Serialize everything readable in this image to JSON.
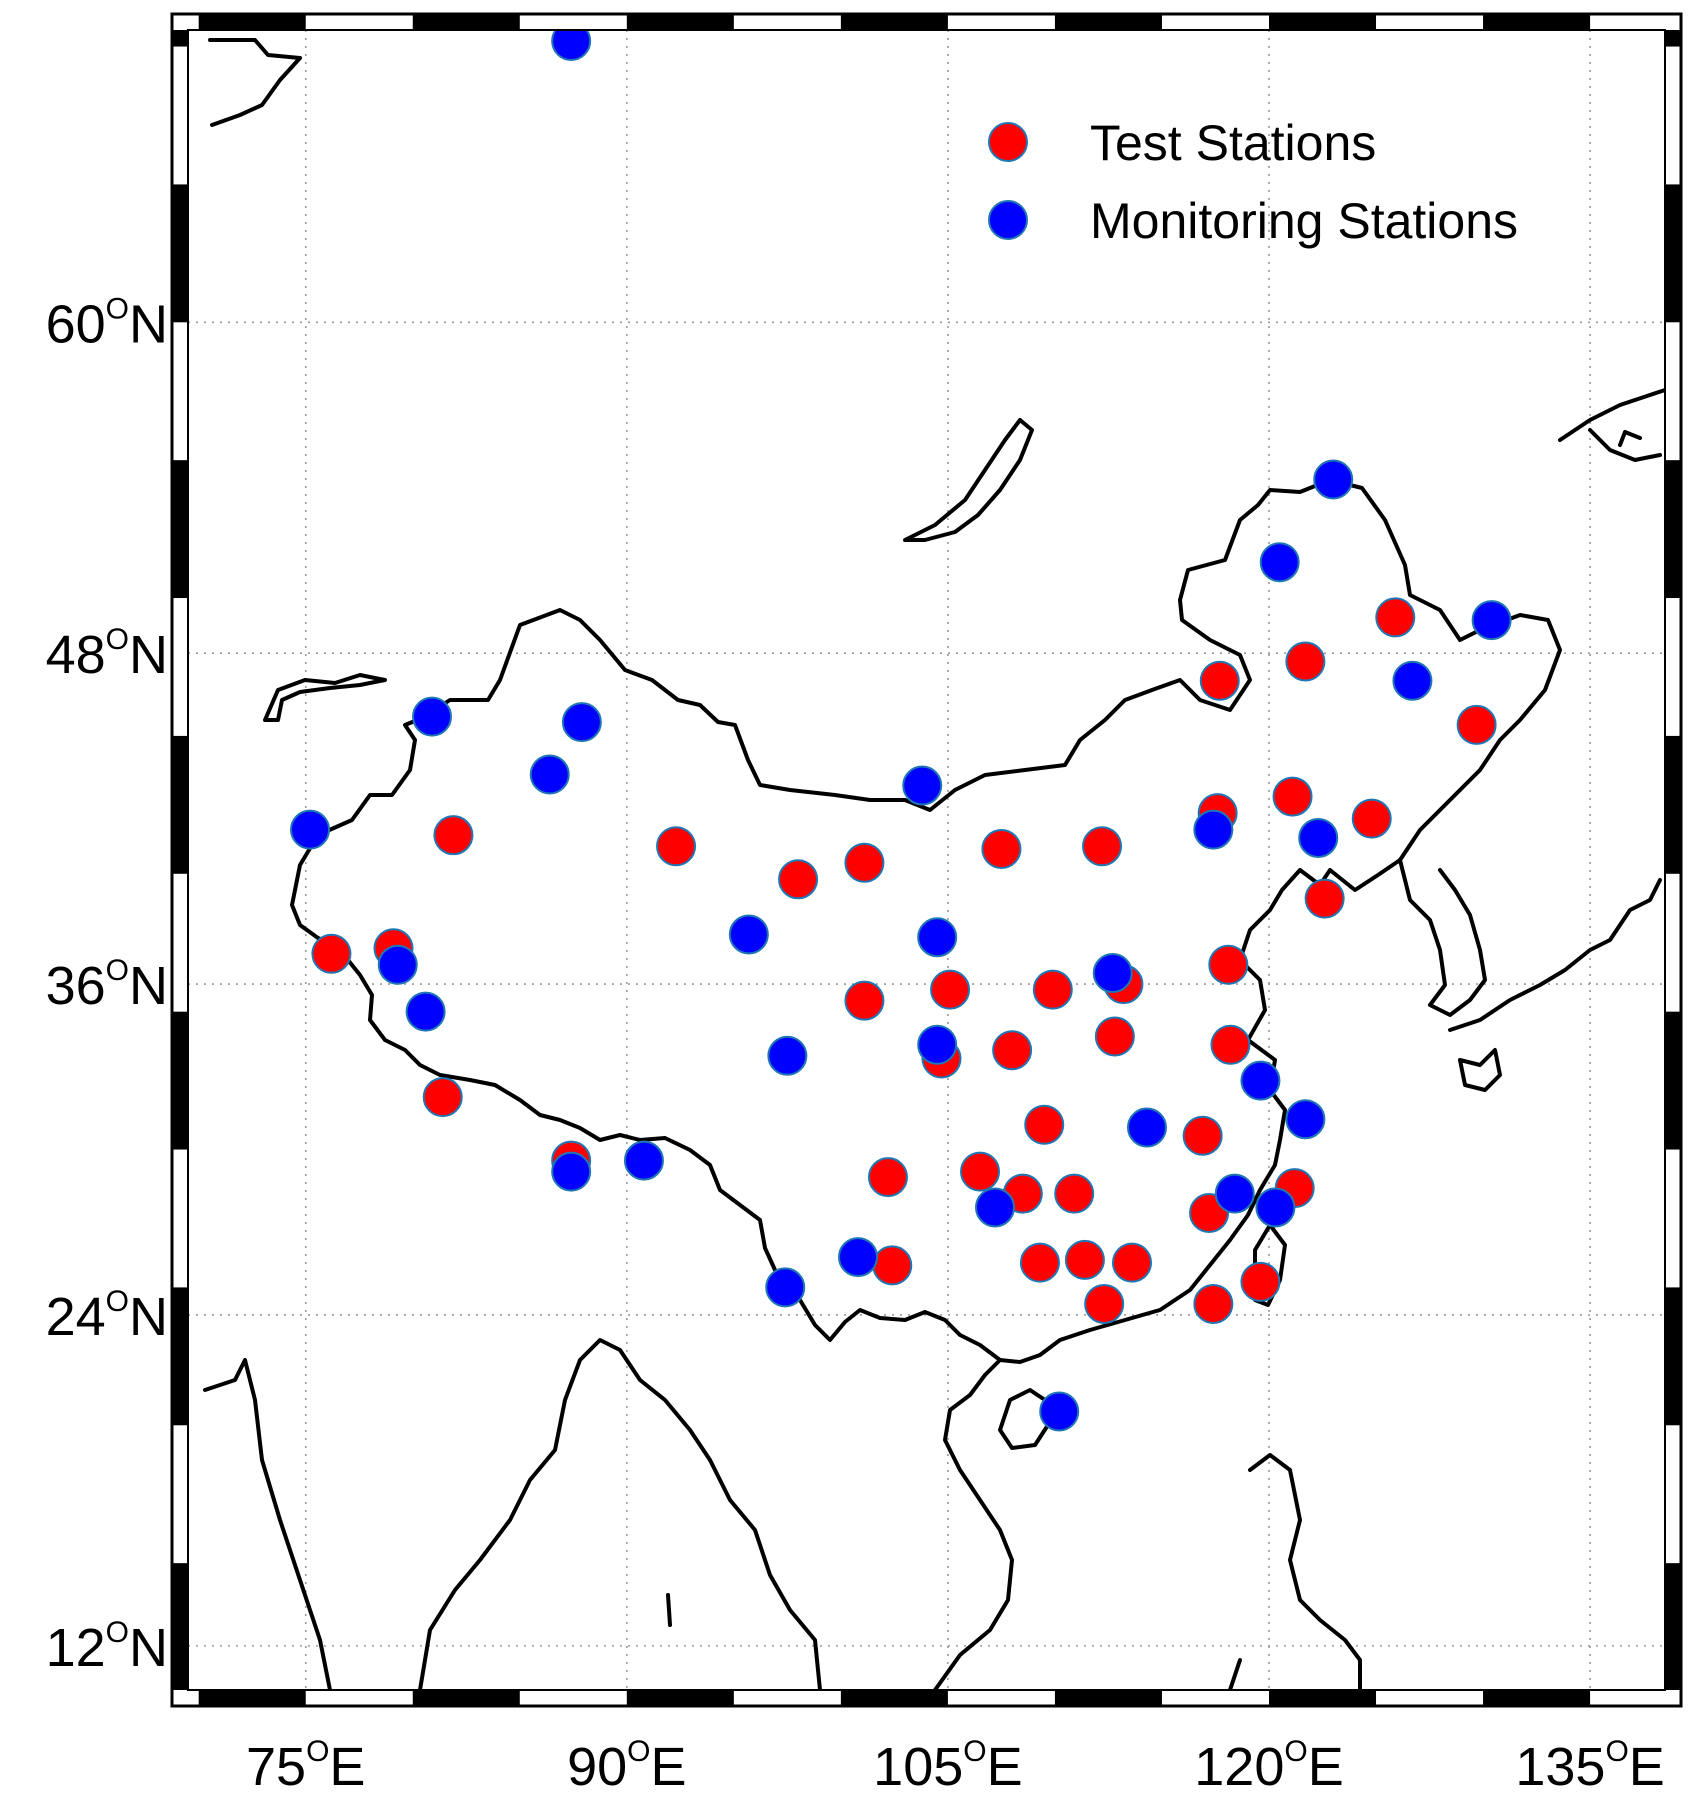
{
  "map": {
    "lon_range": [
      69.5,
      138.5
    ],
    "lat_range": [
      10.4,
      70.6
    ],
    "lon_ticks": [
      {
        "value": 75,
        "num": "75",
        "deg": "O",
        "hem": "E"
      },
      {
        "value": 90,
        "num": "90",
        "deg": "O",
        "hem": "E"
      },
      {
        "value": 105,
        "num": "105",
        "deg": "O",
        "hem": "E"
      },
      {
        "value": 120,
        "num": "120",
        "deg": "O",
        "hem": "E"
      },
      {
        "value": 135,
        "num": "135",
        "deg": "O",
        "hem": "E"
      }
    ],
    "lat_ticks": [
      {
        "value": 12,
        "num": "12",
        "deg": "O",
        "hem": "N"
      },
      {
        "value": 24,
        "num": "24",
        "deg": "O",
        "hem": "N"
      },
      {
        "value": 36,
        "num": "36",
        "deg": "O",
        "hem": "N"
      },
      {
        "value": 48,
        "num": "48",
        "deg": "O",
        "hem": "N"
      },
      {
        "value": 60,
        "num": "60",
        "deg": "O",
        "hem": "N"
      }
    ],
    "grid": true,
    "frame": "black-white checkered border",
    "colors": {
      "test": "#ff0000",
      "monitoring": "#0000ff",
      "marker_edge": "#1f77b4",
      "coast": "#000000",
      "grid": "#9a9a9a"
    }
  },
  "legend": {
    "placement": "top-right",
    "items": [
      {
        "label": "Test Stations",
        "color": "#ff0000"
      },
      {
        "label": "Monitoring Stations",
        "color": "#0000ff"
      }
    ]
  },
  "stations": {
    "test": [
      [
        76.2,
        37.1
      ],
      [
        79.1,
        37.3
      ],
      [
        81.9,
        41.4
      ],
      [
        92.3,
        41.0
      ],
      [
        81.4,
        31.9
      ],
      [
        87.4,
        29.6
      ],
      [
        98.0,
        39.8
      ],
      [
        101.1,
        40.4
      ],
      [
        101.1,
        35.4
      ],
      [
        102.2,
        29.0
      ],
      [
        105.1,
        35.8
      ],
      [
        104.7,
        33.3
      ],
      [
        107.5,
        40.9
      ],
      [
        109.9,
        35.8
      ],
      [
        108.0,
        33.6
      ],
      [
        106.5,
        29.2
      ],
      [
        109.5,
        30.9
      ],
      [
        108.5,
        28.4
      ],
      [
        110.9,
        28.4
      ],
      [
        109.3,
        25.9
      ],
      [
        111.4,
        26.0
      ],
      [
        112.3,
        24.4
      ],
      [
        113.6,
        25.9
      ],
      [
        112.2,
        41.0
      ],
      [
        113.2,
        36.0
      ],
      [
        112.8,
        34.1
      ],
      [
        116.9,
        30.5
      ],
      [
        117.2,
        27.7
      ],
      [
        117.6,
        42.2
      ],
      [
        118.1,
        36.7
      ],
      [
        118.2,
        33.8
      ],
      [
        119.6,
        25.2
      ],
      [
        117.4,
        24.4
      ],
      [
        117.7,
        47.0
      ],
      [
        121.7,
        47.7
      ],
      [
        121.1,
        42.8
      ],
      [
        122.6,
        39.1
      ],
      [
        124.8,
        42.0
      ],
      [
        125.9,
        49.3
      ],
      [
        129.7,
        45.4
      ],
      [
        121.2,
        28.6
      ],
      [
        102.4,
        25.8
      ]
    ],
    "monitoring": [
      [
        87.4,
        70.2
      ],
      [
        80.9,
        45.7
      ],
      [
        86.4,
        43.6
      ],
      [
        87.9,
        45.5
      ],
      [
        75.2,
        41.6
      ],
      [
        79.3,
        36.7
      ],
      [
        80.6,
        35.0
      ],
      [
        87.4,
        29.2
      ],
      [
        90.8,
        29.6
      ],
      [
        95.7,
        37.8
      ],
      [
        97.5,
        33.4
      ],
      [
        103.8,
        43.2
      ],
      [
        100.8,
        26.1
      ],
      [
        97.4,
        25.0
      ],
      [
        104.5,
        37.7
      ],
      [
        104.5,
        33.8
      ],
      [
        107.2,
        27.9
      ],
      [
        112.7,
        36.4
      ],
      [
        114.3,
        30.8
      ],
      [
        117.4,
        41.6
      ],
      [
        119.6,
        32.5
      ],
      [
        121.7,
        31.1
      ],
      [
        120.3,
        27.9
      ],
      [
        118.4,
        28.4
      ],
      [
        122.3,
        41.3
      ],
      [
        120.5,
        51.3
      ],
      [
        123.0,
        54.3
      ],
      [
        126.7,
        47.0
      ],
      [
        130.4,
        49.2
      ],
      [
        110.2,
        20.5
      ]
    ]
  }
}
